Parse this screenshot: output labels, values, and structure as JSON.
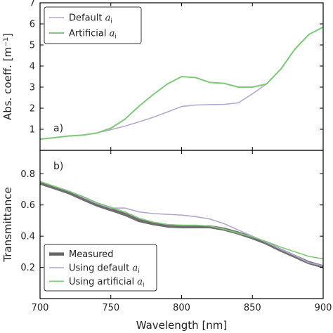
{
  "chart_data": [
    {
      "type": "line",
      "panel_label": "a)",
      "ylabel": "Abs. coeff. [m⁻¹]",
      "xlim": [
        700,
        900
      ],
      "ylim": [
        0,
        7
      ],
      "yticks": [
        1,
        2,
        3,
        4,
        5,
        6,
        7
      ],
      "grid": false,
      "legend": "top-left",
      "series": [
        {
          "name": "Default aᵢ",
          "legend_prefix": "Default ",
          "color": "#b4a8d1",
          "x": [
            700,
            710,
            720,
            730,
            740,
            750,
            760,
            770,
            780,
            790,
            800,
            810,
            820,
            830,
            840,
            850,
            860,
            870,
            880,
            890,
            900
          ],
          "y": [
            0.53,
            0.6,
            0.68,
            0.72,
            0.82,
            0.98,
            1.15,
            1.35,
            1.57,
            1.82,
            2.08,
            2.15,
            2.17,
            2.18,
            2.25,
            2.68,
            3.15,
            3.85,
            4.8,
            5.5,
            5.85
          ]
        },
        {
          "name": "Artificial aᵢ",
          "legend_prefix": "Artificial ",
          "color": "#7fc97a",
          "x": [
            700,
            710,
            720,
            730,
            740,
            750,
            760,
            770,
            780,
            790,
            800,
            810,
            820,
            830,
            840,
            850,
            860,
            870,
            880,
            890,
            900
          ],
          "y": [
            0.53,
            0.6,
            0.68,
            0.72,
            0.82,
            1.05,
            1.48,
            2.1,
            2.65,
            3.15,
            3.5,
            3.45,
            3.22,
            3.18,
            3.0,
            3.0,
            3.15,
            3.85,
            4.8,
            5.5,
            5.85
          ]
        }
      ]
    },
    {
      "type": "line",
      "panel_label": "b)",
      "xlabel": "Wavelength [nm]",
      "ylabel": "Transmittance",
      "xlim": [
        700,
        900
      ],
      "ylim": [
        0,
        0.95
      ],
      "xticks": [
        700,
        750,
        800,
        850,
        900
      ],
      "yticks": [
        0.2,
        0.4,
        0.6,
        0.8
      ],
      "ytick_labels": [
        "0.2",
        "0.4",
        "0.6",
        "0.8"
      ],
      "grid": false,
      "legend": "bottom-left",
      "series": [
        {
          "name": "Measured",
          "legend_prefix": "Measured",
          "color": "#666666",
          "x": [
            700,
            710,
            720,
            730,
            740,
            750,
            760,
            770,
            780,
            790,
            800,
            810,
            820,
            830,
            840,
            850,
            860,
            870,
            880,
            890,
            900
          ],
          "y": [
            0.74,
            0.71,
            0.68,
            0.64,
            0.6,
            0.57,
            0.54,
            0.5,
            0.48,
            0.465,
            0.46,
            0.46,
            0.46,
            0.445,
            0.42,
            0.39,
            0.355,
            0.31,
            0.27,
            0.23,
            0.205
          ]
        },
        {
          "name": "Using default aᵢ",
          "legend_prefix": "Using default ",
          "color": "#b4a8d1",
          "x": [
            700,
            710,
            720,
            730,
            740,
            750,
            760,
            770,
            780,
            790,
            800,
            810,
            820,
            830,
            840,
            850,
            860,
            870,
            880,
            890,
            900
          ],
          "y": [
            0.75,
            0.72,
            0.69,
            0.65,
            0.61,
            0.58,
            0.58,
            0.555,
            0.545,
            0.54,
            0.535,
            0.525,
            0.51,
            0.48,
            0.44,
            0.4,
            0.36,
            0.315,
            0.275,
            0.23,
            0.21
          ]
        },
        {
          "name": "Using artificial aᵢ",
          "legend_prefix": "Using artificial ",
          "color": "#7fc97a",
          "x": [
            700,
            710,
            720,
            730,
            740,
            750,
            760,
            770,
            780,
            790,
            800,
            810,
            820,
            830,
            840,
            850,
            860,
            870,
            880,
            890,
            900
          ],
          "y": [
            0.75,
            0.72,
            0.69,
            0.655,
            0.615,
            0.585,
            0.555,
            0.515,
            0.49,
            0.475,
            0.47,
            0.47,
            0.465,
            0.445,
            0.42,
            0.395,
            0.365,
            0.33,
            0.3,
            0.27,
            0.255
          ]
        }
      ]
    }
  ]
}
